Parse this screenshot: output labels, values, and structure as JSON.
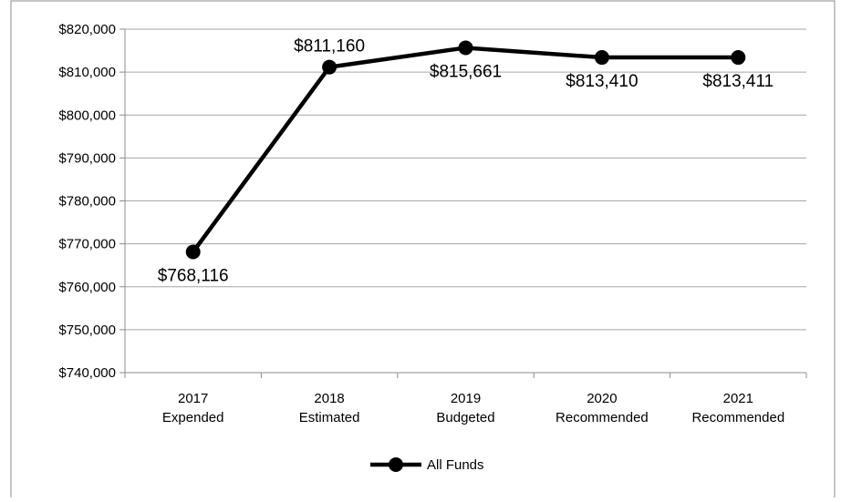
{
  "chart_data": {
    "type": "line",
    "categories": [
      [
        "2017",
        "Expended"
      ],
      [
        "2018",
        "Estimated"
      ],
      [
        "2019",
        "Budgeted"
      ],
      [
        "2020",
        "Recommended"
      ],
      [
        "2021",
        "Recommended"
      ]
    ],
    "series": [
      {
        "name": "All Funds",
        "values": [
          768116,
          811160,
          815661,
          813410,
          813411
        ],
        "data_labels": [
          "$768,116",
          "$811,160",
          "$815,661",
          "$813,410",
          "$813,411"
        ],
        "label_position": [
          "below",
          "above",
          "below",
          "below",
          "below"
        ]
      }
    ],
    "ylim": [
      740000,
      820000
    ],
    "ytick_step": 10000,
    "ytick_labels": [
      "$740,000",
      "$750,000",
      "$760,000",
      "$770,000",
      "$780,000",
      "$790,000",
      "$800,000",
      "$810,000",
      "$820,000"
    ],
    "grid": "horizontal",
    "legend": "bottom-center",
    "line_color": "#000000",
    "grid_color": "#a6a6a6"
  }
}
